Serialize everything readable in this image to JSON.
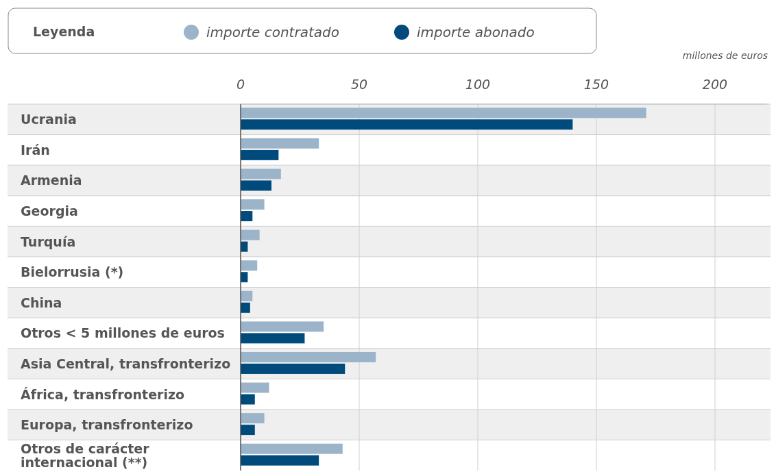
{
  "chart_data": {
    "type": "bar",
    "orientation": "horizontal",
    "legend_title": "Leyenda",
    "xlabel": "millones de euros",
    "categories": [
      "Ucrania",
      "Irán",
      "Armenia",
      "Georgia",
      "Turquía",
      "Bielorrusia (*)",
      "China",
      "Otros < 5 millones de euros",
      "Asia Central, transfronterizo",
      "África, transfronterizo",
      "Europa, transfronterizo",
      "Otros de carácter internacional (**)"
    ],
    "series": [
      {
        "name": "importe contratado",
        "color": "#9bb4c9",
        "values": [
          171,
          33,
          17,
          10,
          8,
          7,
          5,
          35,
          57,
          12,
          10,
          43
        ]
      },
      {
        "name": "importe abonado",
        "color": "#004a7c",
        "values": [
          140,
          16,
          13,
          5,
          3,
          3,
          4,
          27,
          44,
          6,
          6,
          33
        ]
      }
    ],
    "xlim": [
      0,
      222
    ],
    "xticks": [
      0,
      50,
      100,
      150,
      200
    ],
    "grid": "x",
    "legend": "top"
  }
}
